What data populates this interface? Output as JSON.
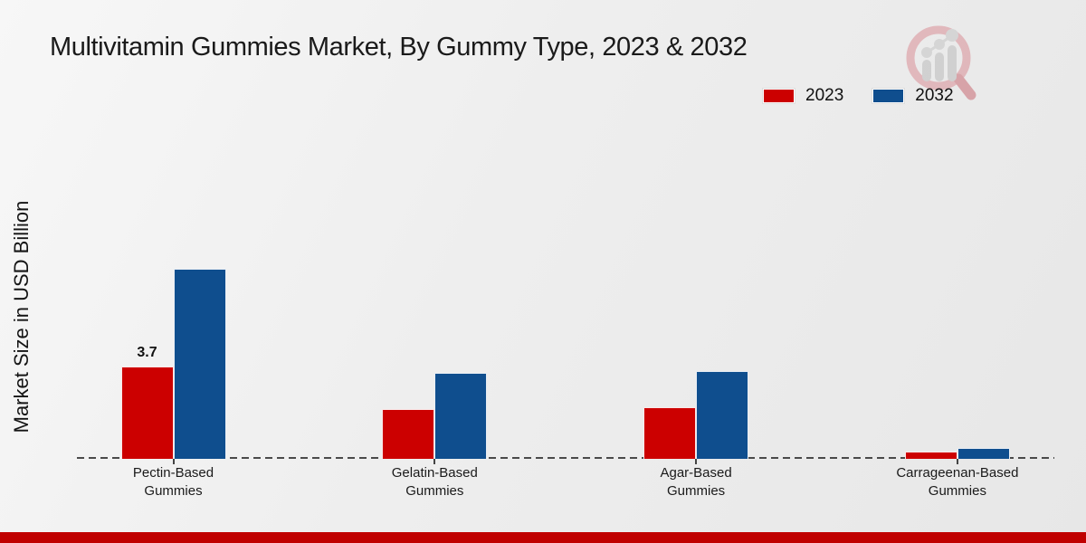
{
  "title": "Multivitamin Gummies Market, By Gummy Type, 2023 & 2032",
  "legend": [
    {
      "label": "2023",
      "color": "#cc0000"
    },
    {
      "label": "2032",
      "color": "#0f4e8e"
    }
  ],
  "footer_color": "#c00000",
  "chart_data": {
    "type": "bar",
    "title": "Multivitamin Gummies Market, By Gummy Type, 2023 & 2032",
    "xlabel": "",
    "ylabel": "Market Size in USD Billion",
    "categories": [
      "Pectin-Based Gummies",
      "Gelatin-Based Gummies",
      "Agar-Based Gummies",
      "Carrageenan-Based Gummies"
    ],
    "series": [
      {
        "name": "2023",
        "color": "#cc0000",
        "values": [
          3.7,
          2.0,
          2.05,
          0.3
        ]
      },
      {
        "name": "2032",
        "color": "#0f4e8e",
        "values": [
          7.6,
          3.45,
          3.5,
          0.45
        ]
      }
    ],
    "data_labels": [
      {
        "series": "2023",
        "category": "Pectin-Based Gummies",
        "value": "3.7"
      }
    ],
    "ylim": [
      0,
      8
    ],
    "grid": false,
    "axis_ticks_visible": false,
    "baseline_style": "dashed",
    "legend_position": "top-right"
  }
}
